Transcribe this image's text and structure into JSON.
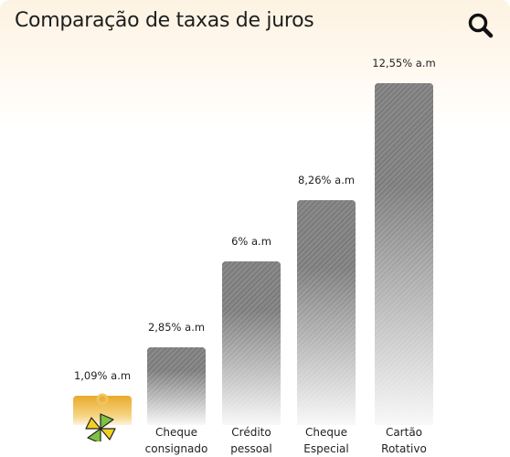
{
  "chart_data": {
    "type": "bar",
    "title": "Comparação de taxas de juros",
    "categories": [
      null,
      "Cheque consignado",
      "Crédito pessoal",
      "Cheque Especial",
      "Cartão Rotativo"
    ],
    "values": [
      1.09,
      2.85,
      6,
      8.26,
      12.55
    ],
    "value_labels": [
      "1,09% a.m",
      "2,85% a.m",
      "6% a.m",
      "8,26% a.m",
      "12,55% a.m"
    ],
    "colors": [
      "#e9a92c",
      "#7b7b7b",
      "#7b7b7b",
      "#7b7b7b",
      "#7b7b7b"
    ]
  }
}
